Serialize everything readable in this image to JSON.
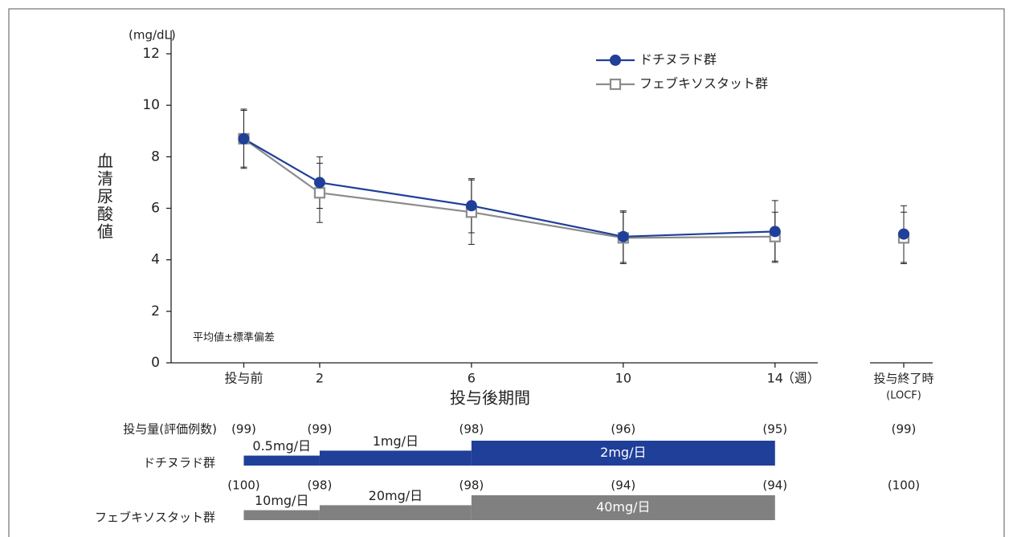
{
  "chart_data": {
    "type": "line",
    "y_unit": "(mg/dL)",
    "y_label": "血清尿酸値",
    "x_label": "投与後期間",
    "x_unit": "（週）",
    "annotation": "平均値±標準偏差",
    "x": [
      0,
      2,
      6,
      10,
      14
    ],
    "xlim": [
      -2,
      15
    ],
    "xticks": [
      {
        "value": 0,
        "label": "投与前"
      },
      2,
      6,
      10,
      14
    ],
    "ylim": [
      0,
      12
    ],
    "yticks": [
      0,
      2,
      4,
      6,
      8,
      10,
      12
    ],
    "end_label": "投与終了時",
    "end_sublabel": "(LOCF)",
    "series": [
      {
        "name": "ドチヌラド群",
        "color": "#1f3f99",
        "marker": "circle",
        "values": [
          8.7,
          7.0,
          6.1,
          4.9,
          5.1
        ],
        "errors": [
          1.15,
          1.0,
          1.05,
          1.0,
          1.2
        ],
        "end_value": 5.0,
        "end_error": 1.1
      },
      {
        "name": "フェブキソスタット群",
        "color": "#8c8c8c",
        "marker": "square",
        "values": [
          8.7,
          6.6,
          5.85,
          4.85,
          4.9
        ],
        "errors": [
          1.1,
          1.15,
          1.25,
          1.0,
          0.95
        ],
        "end_value": 4.85,
        "end_error": 1.0
      }
    ],
    "dosing_header": "投与量(評価例数)",
    "dosing": [
      {
        "name": "ドチヌラド群",
        "color": "#1f3f99",
        "counts": [
          "(99)",
          "(99)",
          "(98)",
          "(96)",
          "(95)",
          "(99)"
        ],
        "segments": [
          {
            "start": 0,
            "end": 2,
            "dose": 0.5,
            "label": "0.5mg/日"
          },
          {
            "start": 2,
            "end": 6,
            "dose": 1,
            "label": "1mg/日"
          },
          {
            "start": 6,
            "end": 14,
            "dose": 2,
            "label": "2mg/日"
          }
        ]
      },
      {
        "name": "フェブキソスタット群",
        "color": "#808080",
        "counts": [
          "(100)",
          "(98)",
          "(98)",
          "(94)",
          "(94)",
          "(100)"
        ],
        "segments": [
          {
            "start": 0,
            "end": 2,
            "dose": 10,
            "label": "10mg/日"
          },
          {
            "start": 2,
            "end": 6,
            "dose": 20,
            "label": "20mg/日"
          },
          {
            "start": 6,
            "end": 14,
            "dose": 40,
            "label": "40mg/日"
          }
        ]
      }
    ]
  }
}
